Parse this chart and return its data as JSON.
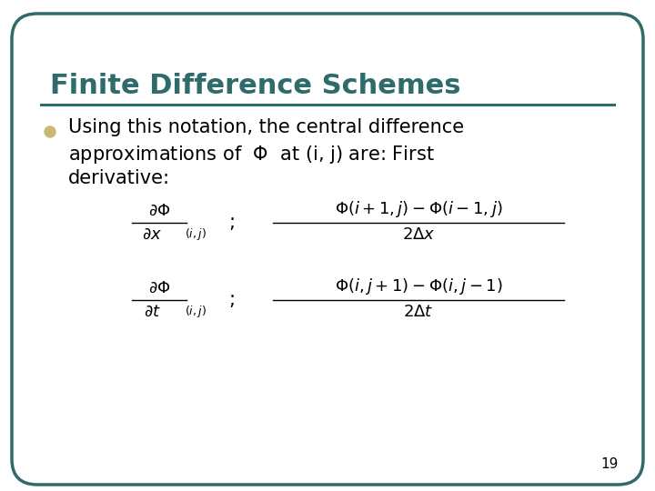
{
  "title": "Finite Difference Schemes",
  "title_color": "#2E6B6B",
  "title_fontsize": 22,
  "line_color": "#2E6B6B",
  "bullet_color": "#C8B870",
  "bullet_fontsize": 15,
  "text_color": "#000000",
  "bg_color": "#FFFFFF",
  "border_color": "#2E6B6B",
  "page_number": "19",
  "figsize": [
    7.2,
    5.4
  ],
  "dpi": 100
}
